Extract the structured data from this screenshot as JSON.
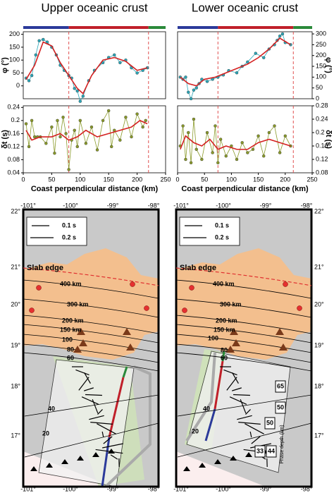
{
  "chart_data": [
    {
      "type": "line",
      "title": "Upper oceanic crust",
      "y_label": "φ (°)",
      "xlim": [
        0,
        250
      ],
      "ylim": [
        -50,
        210
      ],
      "yticks": [
        0,
        50,
        100,
        150,
        200
      ],
      "vlines": [
        80,
        220
      ],
      "series": [
        {
          "color": "#2aa6b8",
          "markers": true,
          "x": [
            5,
            10,
            15,
            22,
            28,
            35,
            42,
            50,
            58,
            65,
            72,
            80,
            85,
            90,
            95,
            100,
            105,
            115,
            125,
            140,
            150,
            160,
            170,
            180,
            190,
            200,
            210,
            218
          ],
          "values": [
            30,
            20,
            40,
            120,
            175,
            180,
            170,
            150,
            120,
            80,
            60,
            40,
            30,
            -10,
            -20,
            -60,
            -40,
            20,
            60,
            90,
            110,
            120,
            90,
            100,
            70,
            50,
            60,
            70
          ]
        },
        {
          "color": "#d42020",
          "markers": false,
          "x": [
            5,
            20,
            35,
            50,
            65,
            80,
            95,
            105,
            120,
            140,
            160,
            180,
            200,
            218
          ],
          "values": [
            25,
            80,
            170,
            155,
            90,
            40,
            -10,
            -30,
            40,
            100,
            110,
            95,
            60,
            70
          ]
        }
      ]
    },
    {
      "type": "line",
      "title": "Lower oceanic crust",
      "y_label": "φ (°)",
      "y_side": "right",
      "xlim": [
        0,
        250
      ],
      "ylim": [
        0,
        310
      ],
      "yticks": [
        0,
        50,
        100,
        150,
        200,
        250,
        300
      ],
      "vlines": [
        75,
        215
      ],
      "series": [
        {
          "color": "#2aa6b8",
          "markers": true,
          "x": [
            5,
            10,
            15,
            20,
            25,
            30,
            35,
            40,
            45,
            55,
            65,
            75,
            85,
            95,
            110,
            120,
            130,
            145,
            160,
            170,
            180,
            185,
            190,
            195,
            200,
            210
          ],
          "values": [
            100,
            90,
            100,
            30,
            0,
            40,
            50,
            70,
            90,
            80,
            90,
            100,
            110,
            130,
            120,
            150,
            170,
            210,
            190,
            230,
            250,
            270,
            290,
            300,
            260,
            250
          ]
        },
        {
          "color": "#d42020",
          "markers": false,
          "x": [
            5,
            20,
            35,
            50,
            70,
            90,
            110,
            130,
            150,
            170,
            190,
            210
          ],
          "values": [
            100,
            70,
            60,
            90,
            100,
            120,
            140,
            160,
            190,
            230,
            280,
            250
          ]
        }
      ]
    },
    {
      "type": "line",
      "y_label": "δt (s)",
      "x_label": "Coast perpendicular distance (km)",
      "xlim": [
        0,
        250
      ],
      "ylim": [
        0.04,
        0.245
      ],
      "xticks": [
        0,
        50,
        100,
        150,
        200,
        250
      ],
      "yticks": [
        0.04,
        0.08,
        0.12,
        0.16,
        0.2,
        0.24
      ],
      "vlines": [
        80,
        220
      ],
      "series": [
        {
          "color": "#8a9a2a",
          "markers": true,
          "x": [
            5,
            10,
            15,
            20,
            25,
            30,
            40,
            50,
            55,
            60,
            65,
            70,
            75,
            80,
            85,
            90,
            95,
            100,
            110,
            120,
            130,
            140,
            150,
            155,
            160,
            170,
            180,
            190,
            200,
            210,
            215
          ],
          "values": [
            0.19,
            0.12,
            0.2,
            0.15,
            0.15,
            0.15,
            0.13,
            0.18,
            0.1,
            0.2,
            0.15,
            0.21,
            0.16,
            0.05,
            0.14,
            0.17,
            0.12,
            0.2,
            0.13,
            0.18,
            0.11,
            0.2,
            0.23,
            0.12,
            0.17,
            0.14,
            0.21,
            0.15,
            0.22,
            0.18,
            0.2
          ]
        },
        {
          "color": "#d42020",
          "markers": false,
          "x": [
            5,
            15,
            30,
            50,
            65,
            80,
            95,
            110,
            130,
            150,
            170,
            190,
            205,
            218
          ],
          "values": [
            0.17,
            0.14,
            0.15,
            0.15,
            0.16,
            0.14,
            0.15,
            0.17,
            0.15,
            0.16,
            0.17,
            0.18,
            0.2,
            0.19
          ]
        }
      ]
    },
    {
      "type": "line",
      "y_label": "δt (s)",
      "y_side": "right",
      "x_label": "Coast perpendicular distance (km)",
      "xlim": [
        0,
        250
      ],
      "ylim": [
        0.08,
        0.28
      ],
      "xticks": [
        0,
        50,
        100,
        150,
        200,
        250
      ],
      "yticks": [
        0.08,
        0.12,
        0.16,
        0.2,
        0.24,
        0.28
      ],
      "vlines": [
        75,
        215
      ],
      "series": [
        {
          "color": "#8a9a2a",
          "markers": true,
          "x": [
            5,
            10,
            15,
            20,
            25,
            30,
            35,
            45,
            55,
            65,
            70,
            75,
            80,
            90,
            100,
            110,
            120,
            130,
            140,
            150,
            160,
            170,
            180,
            190,
            200,
            210
          ],
          "values": [
            0.16,
            0.22,
            0.12,
            0.2,
            0.11,
            0.24,
            0.15,
            0.12,
            0.2,
            0.14,
            0.22,
            0.11,
            0.18,
            0.13,
            0.16,
            0.12,
            0.17,
            0.14,
            0.15,
            0.19,
            0.13,
            0.2,
            0.22,
            0.14,
            0.19,
            0.16
          ]
        },
        {
          "color": "#d42020",
          "markers": false,
          "x": [
            5,
            15,
            30,
            45,
            60,
            75,
            90,
            110,
            130,
            150,
            170,
            190,
            210
          ],
          "values": [
            0.15,
            0.19,
            0.17,
            0.16,
            0.18,
            0.15,
            0.16,
            0.15,
            0.15,
            0.17,
            0.18,
            0.17,
            0.16
          ]
        }
      ]
    }
  ],
  "maps": {
    "lon_labels": [
      "-101°",
      "-100°",
      "-99°",
      "-98°"
    ],
    "lat_labels": [
      "22°",
      "21°",
      "20°",
      "19°",
      "18°",
      "17°"
    ],
    "legend": [
      "0.1 s",
      "0.2 s"
    ],
    "slab_edge": "Slab edge",
    "depth_labels": [
      "400 km",
      "300 km",
      "200 km",
      "150 km",
      "100",
      "80",
      "60",
      "40",
      "20"
    ],
    "phase_depths": [
      "65",
      "50",
      "50",
      "33",
      "44"
    ],
    "phase_depth_title": "Phase depth (km)"
  }
}
